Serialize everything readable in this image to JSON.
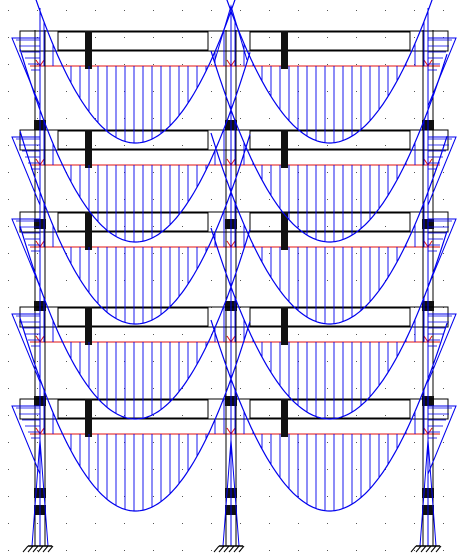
{
  "view": {
    "type": "structural frame moment diagram",
    "background": "#ffffff",
    "grid_dots": true
  },
  "frame": {
    "stories": 5,
    "bays": 2,
    "supports": [
      "fixed-left",
      "fixed-middle",
      "fixed-right"
    ],
    "supports_icon": "fixed-support-hatch-icon"
  },
  "colors": {
    "frame": "#000000",
    "moment": "#0000ee",
    "axis": "#e01010",
    "grid_dot": "#555555"
  }
}
